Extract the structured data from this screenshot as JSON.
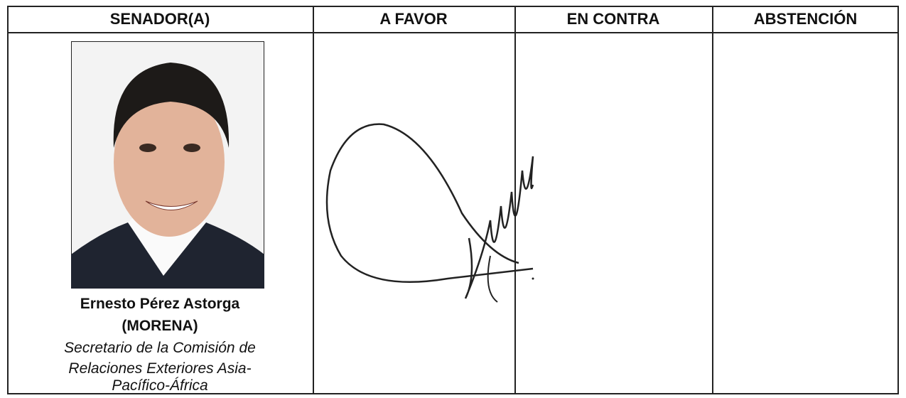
{
  "table": {
    "headers": [
      "SENADOR(A)",
      "A FAVOR",
      "EN CONTRA",
      "ABSTENCIÓN"
    ],
    "senator": {
      "name": "Ernesto Pérez Astorga",
      "party": "(MORENA)",
      "role_lines": [
        "Secretario de la Comisión de",
        "Relaciones Exteriores Asia-",
        "Pacífico-África"
      ]
    }
  }
}
